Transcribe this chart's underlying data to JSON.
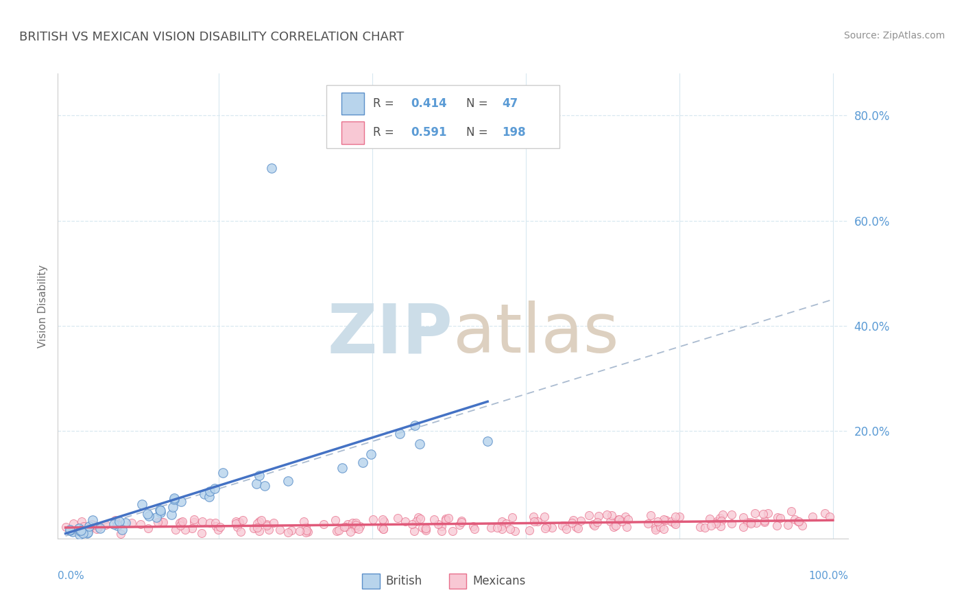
{
  "title": "BRITISH VS MEXICAN VISION DISABILITY CORRELATION CHART",
  "source": "Source: ZipAtlas.com",
  "ylabel": "Vision Disability",
  "ytick_vals": [
    0.0,
    0.2,
    0.4,
    0.6,
    0.8
  ],
  "ytick_labels": [
    "",
    "20.0%",
    "40.0%",
    "60.0%",
    "80.0%"
  ],
  "british_R": 0.414,
  "british_N": 47,
  "mexican_R": 0.591,
  "mexican_N": 198,
  "british_color": "#b8d4ec",
  "british_edge_color": "#5b8fc9",
  "mexican_color": "#f8c8d4",
  "mexican_edge_color": "#e8708c",
  "british_line_color": "#4472c4",
  "mexican_line_color": "#e05a7a",
  "dashed_line_color": "#aabbd0",
  "grid_color": "#d8e8f0",
  "background_color": "#ffffff",
  "title_color": "#505050",
  "source_color": "#909090",
  "axis_label_color": "#5b9bd5",
  "ylabel_color": "#707070",
  "legend_text_color": "#505050",
  "legend_value_color": "#5b9bd5",
  "watermark_zip_color": "#ccdde8",
  "watermark_atlas_color": "#ddd0c0"
}
